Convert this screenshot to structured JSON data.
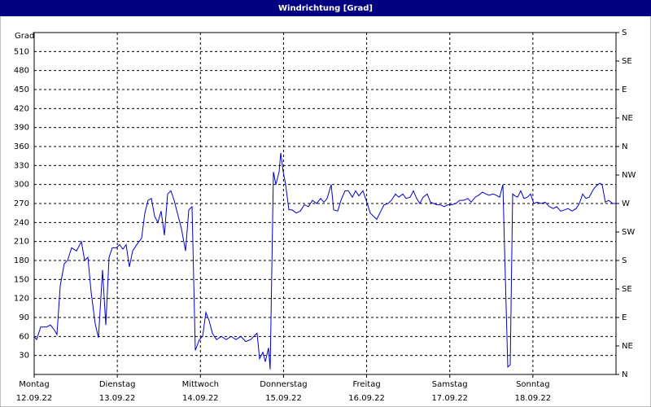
{
  "chart_data": {
    "type": "line",
    "title": "Windrichtung [Grad]",
    "ylabel": "Grad",
    "xlim": [
      0,
      7
    ],
    "xticks": [
      {
        "value": 0,
        "label": "Montag"
      },
      {
        "value": 1,
        "label": "Dienstag"
      },
      {
        "value": 2,
        "label": "Mittwoch"
      },
      {
        "value": 3,
        "label": "Donnerstag"
      },
      {
        "value": 4,
        "label": "Freitag"
      },
      {
        "value": 5,
        "label": "Samstag"
      },
      {
        "value": 6,
        "label": "Sonntag"
      }
    ],
    "xtick_dates": [
      "12.09.22",
      "13.09.22",
      "14.09.22",
      "15.09.22",
      "16.09.22",
      "17.09.22",
      "18.09.22"
    ],
    "ylim": [
      0,
      540
    ],
    "yticks": [
      30,
      60,
      90,
      120,
      150,
      180,
      210,
      240,
      270,
      300,
      330,
      360,
      390,
      420,
      450,
      480,
      510
    ],
    "y2lim": [
      0,
      540
    ],
    "y2ticks": [
      {
        "value": 0,
        "label": "N"
      },
      {
        "value": 45,
        "label": "NE"
      },
      {
        "value": 90,
        "label": "E"
      },
      {
        "value": 135,
        "label": "SE"
      },
      {
        "value": 180,
        "label": "S"
      },
      {
        "value": 225,
        "label": "SW"
      },
      {
        "value": 270,
        "label": "W"
      },
      {
        "value": 315,
        "label": "NW"
      },
      {
        "value": 360,
        "label": "N"
      },
      {
        "value": 405,
        "label": "NE"
      },
      {
        "value": 450,
        "label": "E"
      },
      {
        "value": 495,
        "label": "SE"
      },
      {
        "value": 540,
        "label": "S"
      }
    ],
    "grid": true,
    "series": [
      {
        "name": "Windrichtung",
        "color": "#0000cc",
        "x": [
          0,
          0.029,
          0.078,
          0.147,
          0.196,
          0.245,
          0.274,
          0.313,
          0.362,
          0.401,
          0.45,
          0.509,
          0.568,
          0.607,
          0.646,
          0.685,
          0.734,
          0.773,
          0.822,
          0.862,
          0.901,
          0.94,
          0.989,
          1.028,
          1.067,
          1.106,
          1.145,
          1.185,
          1.234,
          1.292,
          1.331,
          1.371,
          1.41,
          1.449,
          1.488,
          1.527,
          1.566,
          1.606,
          1.645,
          1.684,
          1.723,
          1.772,
          1.821,
          1.86,
          1.899,
          1.938,
          1.987,
          2.027,
          2.066,
          2.105,
          2.144,
          2.193,
          2.252,
          2.31,
          2.369,
          2.428,
          2.487,
          2.545,
          2.604,
          2.663,
          2.682,
          2.712,
          2.751,
          2.78,
          2.82,
          2.839,
          2.878,
          2.908,
          2.947,
          2.966,
          2.996,
          3.025,
          3.064,
          3.103,
          3.152,
          3.201,
          3.25,
          3.299,
          3.348,
          3.397,
          3.446,
          3.485,
          3.524,
          3.573,
          3.603,
          3.652,
          3.691,
          3.74,
          3.779,
          3.828,
          3.867,
          3.906,
          3.955,
          3.994,
          4.043,
          4.082,
          4.122,
          4.171,
          4.21,
          4.259,
          4.298,
          4.347,
          4.386,
          4.435,
          4.474,
          4.523,
          4.562,
          4.601,
          4.64,
          4.68,
          4.729,
          4.768,
          4.807,
          4.846,
          4.885,
          4.934,
          4.973,
          5.022,
          5.071,
          5.12,
          5.169,
          5.218,
          5.257,
          5.306,
          5.345,
          5.394,
          5.433,
          5.473,
          5.522,
          5.561,
          5.6,
          5.639,
          5.659,
          5.698,
          5.727,
          5.757,
          5.786,
          5.815,
          5.854,
          5.893,
          5.933,
          5.972,
          6.011,
          6.05,
          6.099,
          6.148,
          6.197,
          6.246,
          6.285,
          6.334,
          6.383,
          6.422,
          6.471,
          6.52,
          6.559,
          6.599,
          6.638,
          6.677,
          6.726,
          6.765,
          6.804,
          6.833,
          6.872,
          6.912,
          6.961,
          7.0
        ],
        "values": [
          60,
          55,
          75,
          75,
          78,
          70,
          63,
          140,
          175,
          180,
          200,
          195,
          210,
          180,
          185,
          130,
          80,
          58,
          165,
          78,
          185,
          200,
          200,
          205,
          198,
          205,
          170,
          195,
          205,
          215,
          255,
          275,
          278,
          250,
          240,
          258,
          220,
          285,
          290,
          275,
          255,
          230,
          195,
          260,
          265,
          38,
          55,
          60,
          98,
          85,
          65,
          55,
          60,
          55,
          60,
          55,
          60,
          52,
          55,
          63,
          65,
          25,
          35,
          20,
          42,
          8,
          320,
          300,
          320,
          350,
          320,
          300,
          260,
          260,
          255,
          258,
          268,
          265,
          275,
          270,
          278,
          272,
          278,
          300,
          260,
          258,
          275,
          290,
          290,
          280,
          290,
          282,
          290,
          275,
          255,
          250,
          245,
          258,
          268,
          270,
          275,
          285,
          280,
          285,
          278,
          280,
          290,
          278,
          270,
          280,
          285,
          272,
          270,
          268,
          268,
          265,
          268,
          268,
          270,
          275,
          275,
          278,
          272,
          280,
          283,
          288,
          285,
          283,
          285,
          283,
          280,
          300,
          200,
          12,
          15,
          285,
          282,
          280,
          290,
          278,
          280,
          285,
          270,
          272,
          270,
          272,
          265,
          262,
          265,
          258,
          260,
          262,
          258,
          262,
          270,
          285,
          278,
          280,
          292,
          298,
          302,
          300,
          272,
          275,
          270,
          270
        ]
      }
    ]
  }
}
